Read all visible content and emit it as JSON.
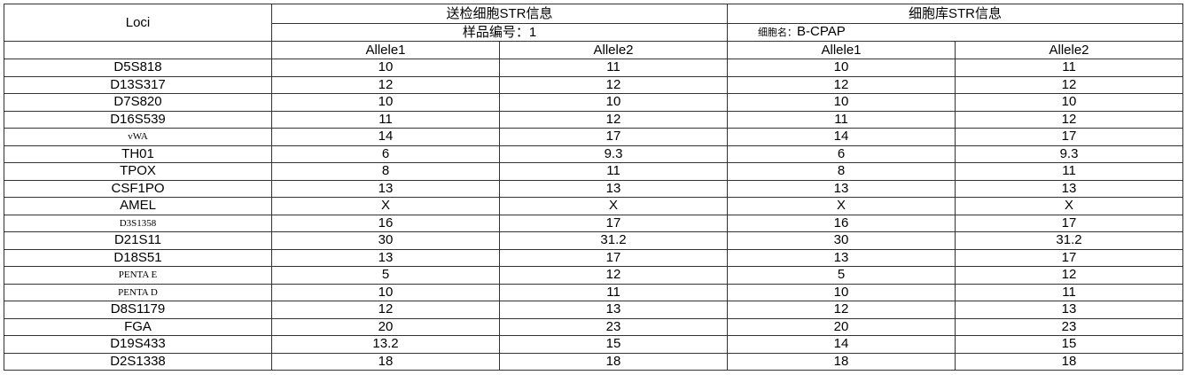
{
  "header": {
    "loci_label": "Loci",
    "sample_group": "送检细胞STR信息",
    "sample_id": "样品编号：1",
    "library_group": "细胞库STR信息",
    "cell_name_label": "细胞名：",
    "cell_name_value": "B-CPAP",
    "allele1": "Allele1",
    "allele2": "Allele2"
  },
  "rows": [
    {
      "locus": "D5S818",
      "s1": "10",
      "s2": "11",
      "l1": "10",
      "l2": "11"
    },
    {
      "locus": "D13S317",
      "s1": "12",
      "s2": "12",
      "l1": "12",
      "l2": "12"
    },
    {
      "locus": "D7S820",
      "s1": "10",
      "s2": "10",
      "l1": "10",
      "l2": "10"
    },
    {
      "locus": "D16S539",
      "s1": "11",
      "s2": "12",
      "l1": "11",
      "l2": "12"
    },
    {
      "locus": "vWA",
      "s1": "14",
      "s2": "17",
      "l1": "14",
      "l2": "17"
    },
    {
      "locus": "TH01",
      "s1": "6",
      "s2": "9.3",
      "l1": "6",
      "l2": "9.3"
    },
    {
      "locus": "TPOX",
      "s1": "8",
      "s2": "11",
      "l1": "8",
      "l2": "11"
    },
    {
      "locus": "CSF1PO",
      "s1": "13",
      "s2": "13",
      "l1": "13",
      "l2": "13"
    },
    {
      "locus": "AMEL",
      "s1": "X",
      "s2": "X",
      "l1": "X",
      "l2": "X"
    },
    {
      "locus": "D3S1358",
      "s1": "16",
      "s2": "17",
      "l1": "16",
      "l2": "17"
    },
    {
      "locus": "D21S11",
      "s1": "30",
      "s2": "31.2",
      "l1": "30",
      "l2": "31.2"
    },
    {
      "locus": "D18S51",
      "s1": "13",
      "s2": "17",
      "l1": "13",
      "l2": "17"
    },
    {
      "locus": "PENTA E",
      "s1": "5",
      "s2": "12",
      "l1": "5",
      "l2": "12"
    },
    {
      "locus": "PENTA D",
      "s1": "10",
      "s2": "11",
      "l1": "10",
      "l2": "11"
    },
    {
      "locus": "D8S1179",
      "s1": "12",
      "s2": "13",
      "l1": "12",
      "l2": "13"
    },
    {
      "locus": "FGA",
      "s1": "20",
      "s2": "23",
      "l1": "20",
      "l2": "23"
    },
    {
      "locus": "D19S433",
      "s1": "13.2",
      "s2": "15",
      "l1": "14",
      "l2": "15"
    },
    {
      "locus": "D2S1338",
      "s1": "18",
      "s2": "18",
      "l1": "18",
      "l2": "18"
    }
  ]
}
